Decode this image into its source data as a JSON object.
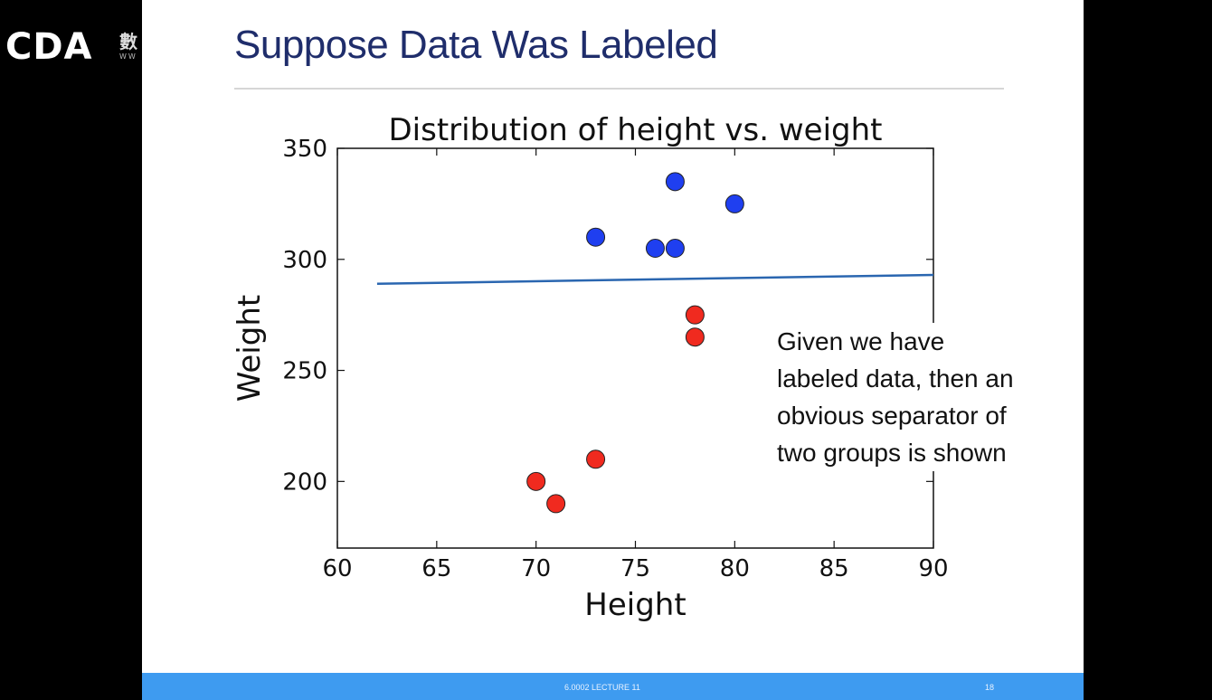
{
  "logo": {
    "text": "CDA",
    "sub": "數",
    "url": "WW"
  },
  "slide": {
    "title": "Suppose Data Was Labeled",
    "annotation": [
      "Given we have",
      "labeled data, then an",
      "obvious separator of",
      "two groups is shown"
    ],
    "footer": "6.0002 LECTURE 11",
    "page": "18"
  },
  "chart_data": {
    "type": "scatter",
    "title": "Distribution of height vs. weight",
    "xlabel": "Height",
    "ylabel": "Weight",
    "xlim": [
      60,
      90
    ],
    "ylim": [
      170,
      350
    ],
    "xticks": [
      60,
      65,
      70,
      75,
      80,
      85,
      90
    ],
    "yticks": [
      200,
      250,
      300,
      350
    ],
    "grid": false,
    "series": [
      {
        "color": "#1f3ff0",
        "points": [
          [
            73,
            310
          ],
          [
            76,
            305
          ],
          [
            77,
            305
          ],
          [
            77,
            335
          ],
          [
            80,
            325
          ]
        ]
      },
      {
        "color": "#f02a1f",
        "points": [
          [
            78,
            275
          ],
          [
            78,
            265
          ],
          [
            70,
            200
          ],
          [
            71,
            190
          ],
          [
            73,
            210
          ]
        ]
      }
    ],
    "separator": {
      "color": "#2a66b0",
      "points": [
        [
          62,
          289
        ],
        [
          90,
          293
        ]
      ]
    }
  }
}
